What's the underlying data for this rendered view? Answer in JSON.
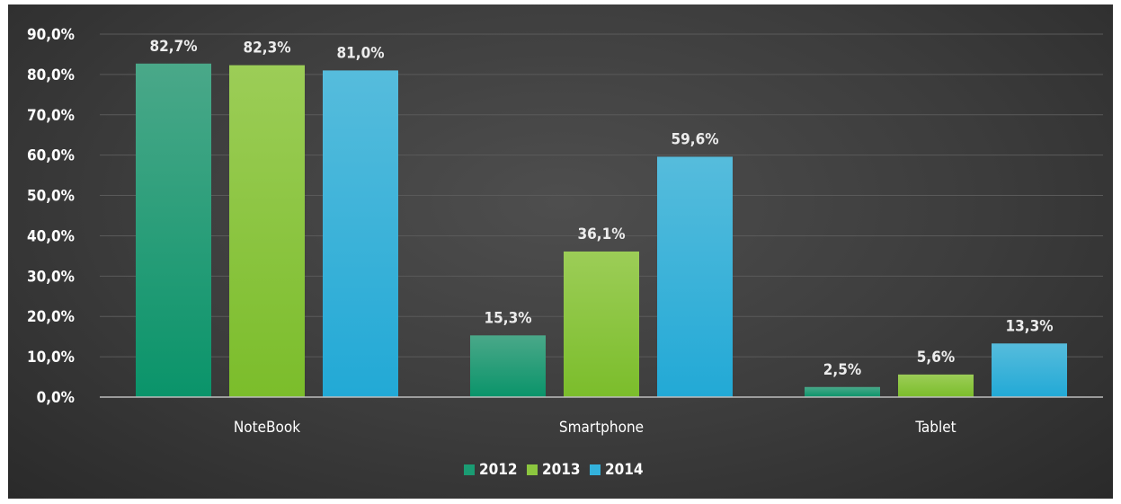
{
  "chart_data": {
    "type": "bar",
    "title": "",
    "xlabel": "",
    "ylabel": "",
    "categories": [
      "NoteBook",
      "Smartphone",
      "Tablet"
    ],
    "series": [
      {
        "name": "2012",
        "values": [
          82.7,
          15.3,
          2.5
        ],
        "labels": [
          "82,7%",
          "15,3%",
          "2,5%"
        ],
        "color": "#1a9c73"
      },
      {
        "name": "2013",
        "values": [
          82.3,
          36.1,
          5.6
        ],
        "labels": [
          "82,3%",
          "36,1%",
          "5,6%"
        ],
        "color": "#8cc63f"
      },
      {
        "name": "2014",
        "values": [
          81.0,
          59.6,
          13.3
        ],
        "labels": [
          "81,0%",
          "59,6%",
          "13,3%"
        ],
        "color": "#33b2dc"
      }
    ],
    "ylim": [
      0,
      90
    ],
    "yticks": [
      0,
      10,
      20,
      30,
      40,
      50,
      60,
      70,
      80,
      90
    ],
    "ytick_labels": [
      "0,0%",
      "10,0%",
      "20,0%",
      "30,0%",
      "40,0%",
      "50,0%",
      "60,0%",
      "70,0%",
      "80,0%",
      "90,0%"
    ],
    "grid": true,
    "legend_position": "bottom"
  },
  "colors": {
    "background": "#3c3c3c",
    "gridline": "#5a5a5a",
    "axis": "#bdbdbd",
    "text": "#ffffff"
  }
}
